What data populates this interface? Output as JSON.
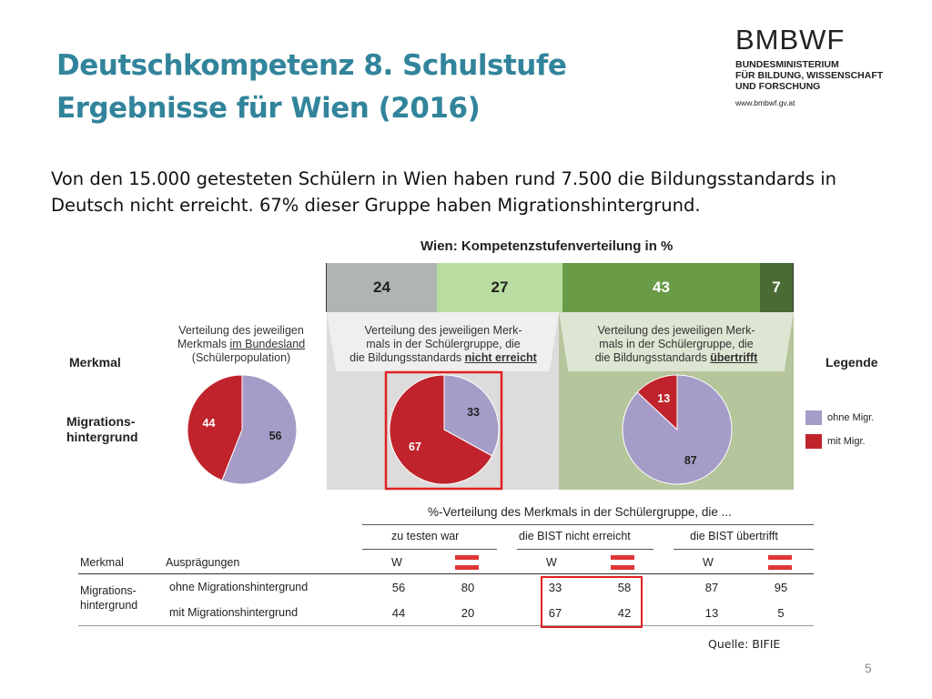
{
  "slide": {
    "title_line1": "Deutschkompetenz  8. Schulstufe",
    "title_line2": "Ergebnisse für Wien (2016)",
    "intro_line1": "Von den 15.000 getesteten Schülern in Wien haben rund 7.500 die Bildungsstandards in",
    "intro_line2": "Deutsch nicht erreicht. 67% dieser Gruppe haben Migrationshintergrund.",
    "source": "Quelle: BIFIE",
    "page_number": "5"
  },
  "logo": {
    "name": "BMBWF",
    "line1": "BUNDESMINISTERIUM",
    "line2": "FÜR BILDUNG, WISSENSCHAFT",
    "line3": "UND FORSCHUNG",
    "url": "www.bmbwf.gv.at"
  },
  "chart_data": [
    {
      "type": "bar",
      "title": "Wien: Kompetenzstufenverteilung in %",
      "stacked": true,
      "orientation": "horizontal",
      "values": [
        24,
        27,
        43,
        7
      ],
      "colors": [
        "#b1b4b5",
        "#b9dca0",
        "#6a9b47",
        "#4a6b33"
      ]
    },
    {
      "type": "pie",
      "caption_line1": "Verteilung des jeweiligen",
      "caption_line2": "Merkmals",
      "caption_line2_u": "im Bundesland",
      "caption_line3": "(Schülerpopulation)",
      "slices": [
        {
          "label": "ohne Migr.",
          "value": 56,
          "color": "#a59cc8"
        },
        {
          "label": "mit Migr.",
          "value": 44,
          "color": "#c0232b"
        }
      ]
    },
    {
      "type": "pie",
      "caption_line1": "Verteilung des jeweiligen Merk-",
      "caption_line2": "mals in der Schülergruppe, die",
      "caption_line3": "die Bildungsstandards",
      "caption_line3_b": "nicht erreicht",
      "slices": [
        {
          "label": "ohne Migr.",
          "value": 33,
          "color": "#a59cc8"
        },
        {
          "label": "mit Migr.",
          "value": 67,
          "color": "#c0232b"
        }
      ]
    },
    {
      "type": "pie",
      "caption_line1": "Verteilung des jeweiligen Merk-",
      "caption_line2": "mals in der Schülergruppe, die",
      "caption_line3": "die Bildungsstandards",
      "caption_line3_b": "übertrifft",
      "slices": [
        {
          "label": "ohne Migr.",
          "value": 87,
          "color": "#a59cc8"
        },
        {
          "label": "mit Migr.",
          "value": 13,
          "color": "#c0232b"
        }
      ]
    },
    {
      "type": "table",
      "title": "%-Verteilung des Merkmals in der Schülergruppe, die ...",
      "group_headers": [
        "zu testen war",
        "die BIST nicht erreicht",
        "die BIST übertrifft"
      ],
      "sub_header": "W",
      "col_merkmal": "Merkmal",
      "col_auspraegungen": "Ausprägungen",
      "merkmal_line1": "Migrations-",
      "merkmal_line2": "hintergrund",
      "rows": [
        {
          "label": "ohne Migrationshintergrund",
          "values": [
            56,
            80,
            33,
            58,
            87,
            95
          ]
        },
        {
          "label": "mit Migrationshintergrund",
          "values": [
            44,
            20,
            67,
            42,
            13,
            5
          ]
        }
      ]
    }
  ],
  "pie_section": {
    "merkmal_label": "Merkmal",
    "legend_label": "Legende",
    "row_label_line1": "Migrations-",
    "row_label_line2": "hintergrund",
    "legend": [
      {
        "label": "ohne Migr.",
        "color": "#a59cc8"
      },
      {
        "label": "mit Migr.",
        "color": "#c0232b"
      }
    ]
  },
  "colors": {
    "title": "#31849b",
    "highlight": "#e02020",
    "panel_nicht_erreicht": "#dcdcdc",
    "panel_uebertrifft": "#b5c59c"
  }
}
